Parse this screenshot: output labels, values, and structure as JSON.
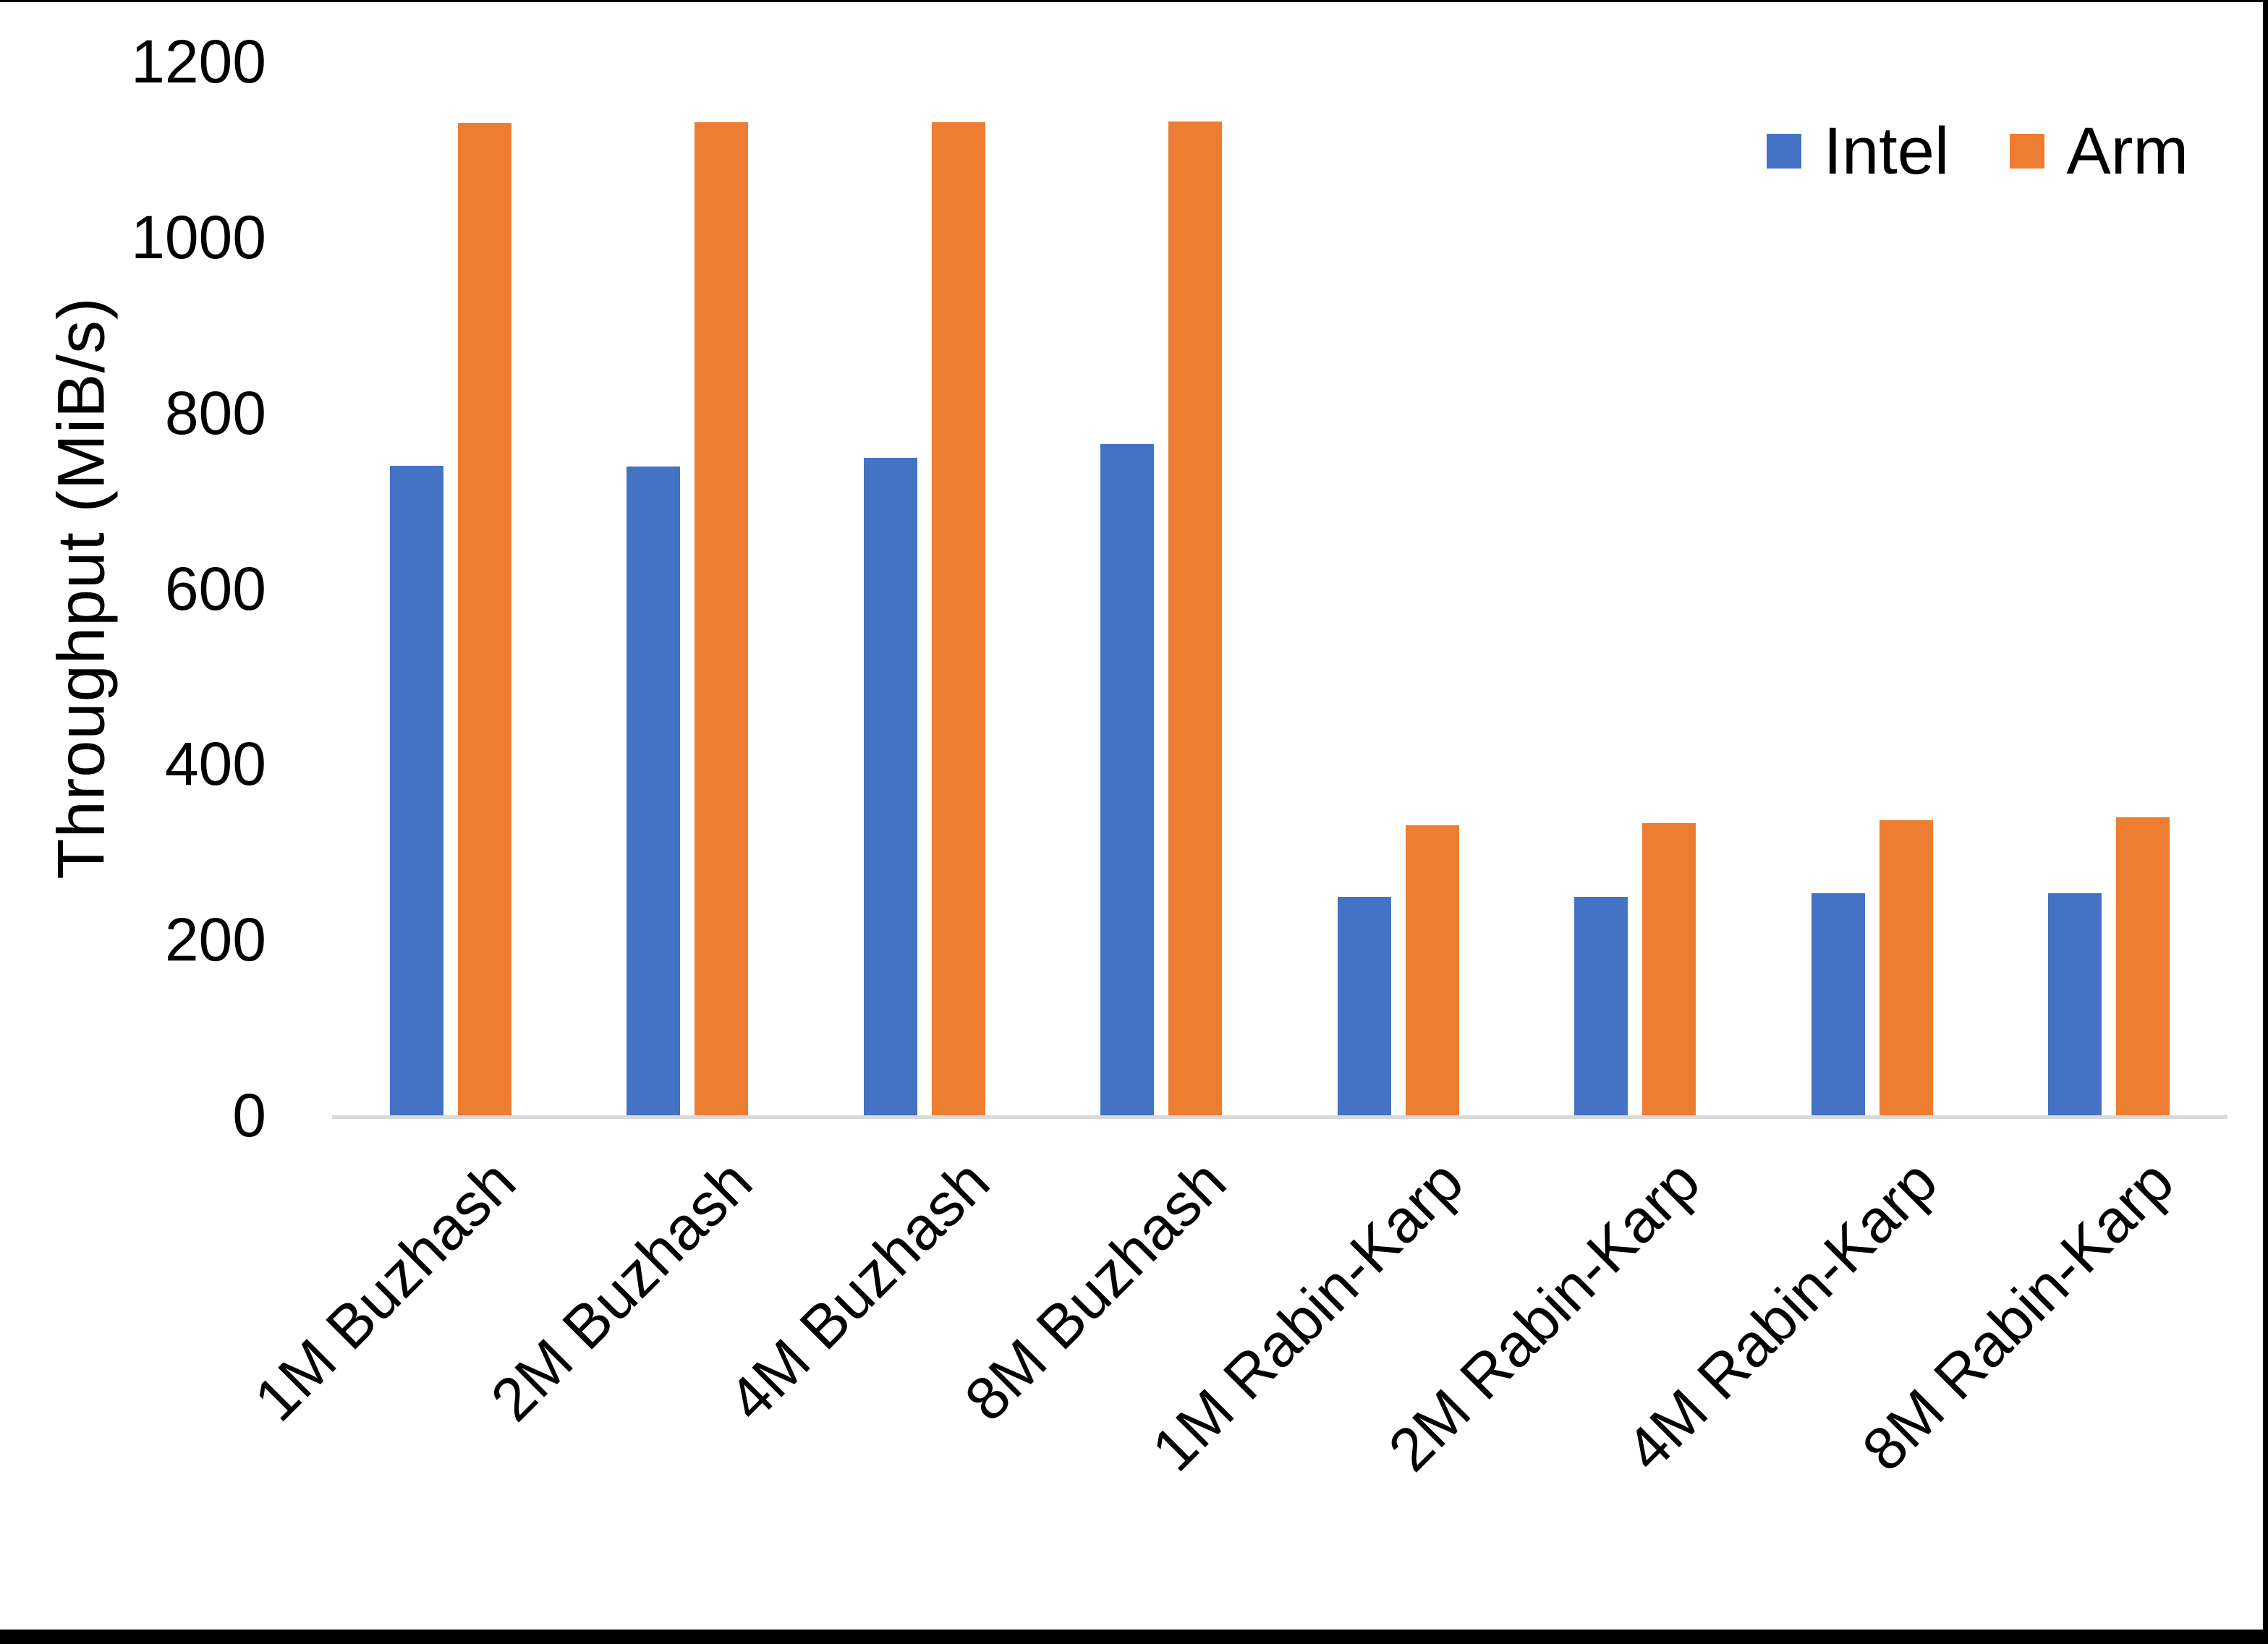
{
  "page": {
    "background": "#FFFFFF",
    "frame_border_color": "#000000"
  },
  "chart_data": {
    "type": "bar",
    "title": "",
    "xlabel": "",
    "ylabel": "Throughput (MiB/s)",
    "ylim": [
      0,
      1200
    ],
    "yticks": [
      0,
      200,
      400,
      600,
      800,
      1000,
      1200
    ],
    "grid": false,
    "legend_position": "top-right",
    "axis_line_color": "#D9D9D9",
    "text_color": "#000000",
    "categories": [
      "1M Buzhash",
      "2M Buzhash",
      "4M Buzhash",
      "8M Buzhash",
      "1M Rabin-Karp",
      "2M Rabin-Karp",
      "4M Rabin-Karp",
      "8M Rabin-Karp"
    ],
    "series": [
      {
        "name": "Intel",
        "color": "#4472C4",
        "values": [
          740,
          739,
          749,
          764,
          249,
          249,
          253,
          253
        ]
      },
      {
        "name": "Arm",
        "color": "#ED7D31",
        "values": [
          1130,
          1131,
          1131,
          1132,
          330,
          333,
          336,
          339
        ]
      }
    ]
  }
}
